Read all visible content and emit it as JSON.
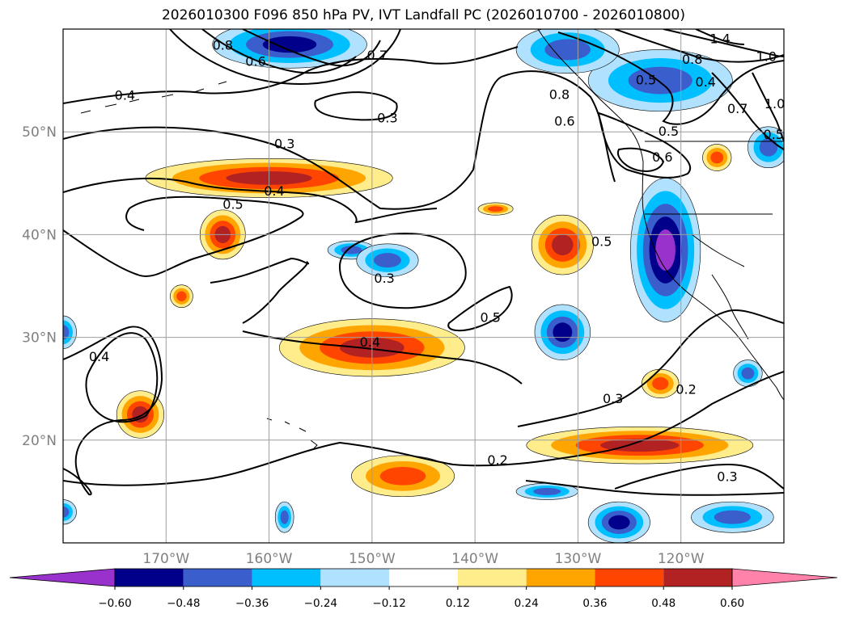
{
  "chart_data": {
    "type": "map-contour",
    "title": "2026010300 F096 850 hPa PV, IVT Landfall PC (2026010700 - 2026010800)",
    "lon_ticks": [
      {
        "value": -170,
        "label": "170°W"
      },
      {
        "value": -160,
        "label": "160°W"
      },
      {
        "value": -150,
        "label": "150°W"
      },
      {
        "value": -140,
        "label": "140°W"
      },
      {
        "value": -130,
        "label": "130°W"
      },
      {
        "value": -120,
        "label": "120°W"
      }
    ],
    "lat_ticks": [
      {
        "value": 50,
        "label": "50°N"
      },
      {
        "value": 40,
        "label": "40°N"
      },
      {
        "value": 30,
        "label": "30°N"
      },
      {
        "value": 20,
        "label": "20°N"
      }
    ],
    "lon_range": [
      -180,
      -110
    ],
    "lat_range": [
      10,
      60
    ],
    "colorbar": {
      "levels": [
        -0.6,
        -0.48,
        -0.36,
        -0.24,
        -0.12,
        0.12,
        0.24,
        0.36,
        0.48,
        0.6
      ],
      "tick_labels": [
        "−0.60",
        "−0.48",
        "−0.36",
        "−0.24",
        "−0.12",
        "0.12",
        "0.24",
        "0.36",
        "0.48",
        "0.60"
      ],
      "colors": [
        "#9932CC",
        "#00008B",
        "#3a5fcd",
        "#00BFFF",
        "#B0E2FF",
        "#FFFFFF",
        "#FFEC8B",
        "#FFA500",
        "#FF4500",
        "#B22222",
        "#FF82AB"
      ]
    },
    "pv_contour_labels": [
      {
        "text": "0.4",
        "lon": -174,
        "lat": 53.5
      },
      {
        "text": "0.3",
        "lon": -158.5,
        "lat": 48.8
      },
      {
        "text": "0.3",
        "lon": -148.5,
        "lat": 51.3
      },
      {
        "text": "0.4",
        "lon": -159.5,
        "lat": 44.2
      },
      {
        "text": "0.5",
        "lon": -163.5,
        "lat": 42.9
      },
      {
        "text": "0.3",
        "lon": -148.8,
        "lat": 35.7
      },
      {
        "text": "0.5",
        "lon": -138.5,
        "lat": 31.9
      },
      {
        "text": "0.4",
        "lon": -150.2,
        "lat": 29.5
      },
      {
        "text": "0.4",
        "lon": -176.5,
        "lat": 28.1
      },
      {
        "text": "0.5",
        "lon": -127.7,
        "lat": 39.3
      },
      {
        "text": "0.3",
        "lon": -126.6,
        "lat": 24.0
      },
      {
        "text": "0.2",
        "lon": -119.5,
        "lat": 24.9
      },
      {
        "text": "0.2",
        "lon": -137.8,
        "lat": 18.0
      },
      {
        "text": "0.3",
        "lon": -115.5,
        "lat": 16.4
      },
      {
        "text": "0.5",
        "lon": -121.2,
        "lat": 50.0
      },
      {
        "text": "0.6",
        "lon": -121.8,
        "lat": 47.5
      },
      {
        "text": "0.5",
        "lon": -123.4,
        "lat": 55.0
      },
      {
        "text": "0.4",
        "lon": -117.6,
        "lat": 54.8
      },
      {
        "text": "0.8",
        "lon": -118.9,
        "lat": 57.0
      },
      {
        "text": "1.4",
        "lon": -116.2,
        "lat": 59.0
      },
      {
        "text": "1.0",
        "lon": -111.7,
        "lat": 57.3
      },
      {
        "text": "1.0",
        "lon": -110.9,
        "lat": 52.7
      },
      {
        "text": "0.7",
        "lon": -114.5,
        "lat": 52.2
      },
      {
        "text": "0.7",
        "lon": -149.5,
        "lat": 57.4
      },
      {
        "text": "0.8",
        "lon": -164.5,
        "lat": 58.4
      },
      {
        "text": "0.6",
        "lon": -161.3,
        "lat": 56.8
      },
      {
        "text": "0.6",
        "lon": -131.3,
        "lat": 51.0
      },
      {
        "text": "0.8",
        "lon": -131.8,
        "lat": 53.6
      },
      {
        "text": "0.5",
        "lon": -111.0,
        "lat": 49.7
      }
    ],
    "ivt_pc_anomalies": [
      {
        "lon": -160,
        "lat": 45.5,
        "rx": 12,
        "ry": 1.9,
        "value": 0.48
      },
      {
        "lon": -164.5,
        "lat": 40,
        "rx": 2.2,
        "ry": 2.4,
        "value": 0.48
      },
      {
        "lon": -150,
        "lat": 29,
        "rx": 9,
        "ry": 2.8,
        "value": 0.48
      },
      {
        "lon": -131.5,
        "lat": 39,
        "rx": 3,
        "ry": 2.9,
        "value": 0.48
      },
      {
        "lon": -147,
        "lat": 16.5,
        "rx": 5,
        "ry": 2,
        "value": 0.36
      },
      {
        "lon": -124,
        "lat": 19.5,
        "rx": 11,
        "ry": 1.8,
        "value": 0.48
      },
      {
        "lon": -172.5,
        "lat": 22.5,
        "rx": 2.3,
        "ry": 2.3,
        "value": 0.48
      },
      {
        "lon": -168.5,
        "lat": 34,
        "rx": 1.1,
        "ry": 1.1,
        "value": 0.36
      },
      {
        "lon": -138,
        "lat": 42.5,
        "rx": 1.7,
        "ry": 0.6,
        "value": 0.36
      },
      {
        "lon": -122,
        "lat": 25.5,
        "rx": 1.8,
        "ry": 1.4,
        "value": 0.36
      },
      {
        "lon": -116.5,
        "lat": 47.5,
        "rx": 1.4,
        "ry": 1.3,
        "value": 0.36
      },
      {
        "lon": -152,
        "lat": 38.5,
        "rx": 2.3,
        "ry": 0.9,
        "value": -0.36
      },
      {
        "lon": -148.5,
        "lat": 37.5,
        "rx": 3,
        "ry": 1.6,
        "value": -0.36
      },
      {
        "lon": -131.5,
        "lat": 30.5,
        "rx": 2.7,
        "ry": 2.7,
        "value": -0.48
      },
      {
        "lon": -121.5,
        "lat": 38.5,
        "rx": 3.4,
        "ry": 7,
        "value": -0.6
      },
      {
        "lon": -111.5,
        "lat": 48.5,
        "rx": 2,
        "ry": 2,
        "value": -0.36
      },
      {
        "lon": -113.5,
        "lat": 26.5,
        "rx": 1.4,
        "ry": 1.3,
        "value": -0.36
      },
      {
        "lon": -126,
        "lat": 12,
        "rx": 3,
        "ry": 2,
        "value": -0.48
      },
      {
        "lon": -115,
        "lat": 12.5,
        "rx": 4,
        "ry": 1.5,
        "value": -0.36
      },
      {
        "lon": -133,
        "lat": 15,
        "rx": 3,
        "ry": 0.8,
        "value": -0.36
      },
      {
        "lon": -180,
        "lat": 30.5,
        "rx": 1.3,
        "ry": 1.6,
        "value": -0.36
      },
      {
        "lon": -180,
        "lat": 13,
        "rx": 1.3,
        "ry": 1.2,
        "value": -0.36
      },
      {
        "lon": -158.5,
        "lat": 12.5,
        "rx": 0.9,
        "ry": 1.5,
        "value": -0.36
      },
      {
        "lon": -122,
        "lat": 55,
        "rx": 7,
        "ry": 3,
        "value": -0.36
      },
      {
        "lon": -131,
        "lat": 58,
        "rx": 5,
        "ry": 2.3,
        "value": -0.36
      },
      {
        "lon": -158,
        "lat": 58.5,
        "rx": 7.5,
        "ry": 2.3,
        "value": -0.48
      }
    ]
  }
}
